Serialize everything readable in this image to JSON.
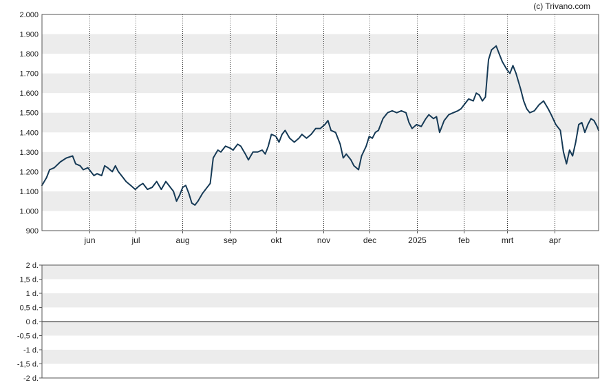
{
  "credit": "(c) Trivano.com",
  "colors": {
    "line": "#163a56",
    "band": "#ececec",
    "frame": "#555555",
    "grid": "#333333"
  },
  "chart_data": [
    {
      "type": "line",
      "ylim": [
        900,
        2000
      ],
      "yticks": [
        {
          "value": 900,
          "label": "900"
        },
        {
          "value": 1000,
          "label": "1.000"
        },
        {
          "value": 1100,
          "label": "1.100"
        },
        {
          "value": 1200,
          "label": "1.200"
        },
        {
          "value": 1300,
          "label": "1.300"
        },
        {
          "value": 1400,
          "label": "1.400"
        },
        {
          "value": 1500,
          "label": "1.500"
        },
        {
          "value": 1600,
          "label": "1.600"
        },
        {
          "value": 1700,
          "label": "1.700"
        },
        {
          "value": 1800,
          "label": "1.800"
        },
        {
          "value": 1900,
          "label": "1.900"
        },
        {
          "value": 2000,
          "label": "2.000"
        }
      ],
      "xlim": [
        "2024-05-01",
        "2025-04-30"
      ],
      "xticks": [
        {
          "date": "2024-06-01",
          "label": "jun"
        },
        {
          "date": "2024-07-01",
          "label": "jul"
        },
        {
          "date": "2024-08-01",
          "label": "aug"
        },
        {
          "date": "2024-09-01",
          "label": "sep"
        },
        {
          "date": "2024-10-01",
          "label": "okt"
        },
        {
          "date": "2024-11-01",
          "label": "nov"
        },
        {
          "date": "2024-12-01",
          "label": "dec"
        },
        {
          "date": "2025-01-01",
          "label": "2025"
        },
        {
          "date": "2025-02-01",
          "label": "feb"
        },
        {
          "date": "2025-03-01",
          "label": "mrt"
        },
        {
          "date": "2025-04-01",
          "label": "apr"
        }
      ],
      "grid": "vertical dotted lines at month ticks, alternating horizontal bands",
      "series": [
        {
          "points": [
            [
              "2024-05-01",
              1130
            ],
            [
              "2024-05-04",
              1170
            ],
            [
              "2024-05-06",
              1210
            ],
            [
              "2024-05-09",
              1220
            ],
            [
              "2024-05-13",
              1250
            ],
            [
              "2024-05-17",
              1270
            ],
            [
              "2024-05-21",
              1280
            ],
            [
              "2024-05-23",
              1240
            ],
            [
              "2024-05-26",
              1230
            ],
            [
              "2024-05-28",
              1210
            ],
            [
              "2024-05-31",
              1220
            ],
            [
              "2024-06-02",
              1200
            ],
            [
              "2024-06-04",
              1180
            ],
            [
              "2024-06-06",
              1190
            ],
            [
              "2024-06-09",
              1180
            ],
            [
              "2024-06-11",
              1230
            ],
            [
              "2024-06-13",
              1220
            ],
            [
              "2024-06-16",
              1200
            ],
            [
              "2024-06-18",
              1230
            ],
            [
              "2024-06-20",
              1200
            ],
            [
              "2024-06-23",
              1170
            ],
            [
              "2024-06-25",
              1150
            ],
            [
              "2024-06-28",
              1130
            ],
            [
              "2024-07-01",
              1110
            ],
            [
              "2024-07-04",
              1130
            ],
            [
              "2024-07-06",
              1140
            ],
            [
              "2024-07-09",
              1110
            ],
            [
              "2024-07-12",
              1120
            ],
            [
              "2024-07-15",
              1150
            ],
            [
              "2024-07-18",
              1110
            ],
            [
              "2024-07-21",
              1150
            ],
            [
              "2024-07-24",
              1120
            ],
            [
              "2024-07-26",
              1100
            ],
            [
              "2024-07-28",
              1050
            ],
            [
              "2024-07-30",
              1080
            ],
            [
              "2024-08-01",
              1120
            ],
            [
              "2024-08-03",
              1130
            ],
            [
              "2024-08-05",
              1090
            ],
            [
              "2024-08-07",
              1040
            ],
            [
              "2024-08-09",
              1030
            ],
            [
              "2024-08-11",
              1050
            ],
            [
              "2024-08-14",
              1090
            ],
            [
              "2024-08-17",
              1120
            ],
            [
              "2024-08-19",
              1140
            ],
            [
              "2024-08-21",
              1270
            ],
            [
              "2024-08-24",
              1310
            ],
            [
              "2024-08-26",
              1300
            ],
            [
              "2024-08-29",
              1330
            ],
            [
              "2024-09-01",
              1320
            ],
            [
              "2024-09-03",
              1310
            ],
            [
              "2024-09-06",
              1340
            ],
            [
              "2024-09-08",
              1330
            ],
            [
              "2024-09-11",
              1290
            ],
            [
              "2024-09-13",
              1260
            ],
            [
              "2024-09-16",
              1300
            ],
            [
              "2024-09-19",
              1300
            ],
            [
              "2024-09-22",
              1310
            ],
            [
              "2024-09-24",
              1290
            ],
            [
              "2024-09-26",
              1330
            ],
            [
              "2024-09-28",
              1390
            ],
            [
              "2024-10-01",
              1380
            ],
            [
              "2024-10-03",
              1350
            ],
            [
              "2024-10-05",
              1390
            ],
            [
              "2024-10-07",
              1410
            ],
            [
              "2024-10-10",
              1370
            ],
            [
              "2024-10-13",
              1350
            ],
            [
              "2024-10-16",
              1370
            ],
            [
              "2024-10-18",
              1390
            ],
            [
              "2024-10-21",
              1370
            ],
            [
              "2024-10-24",
              1390
            ],
            [
              "2024-10-27",
              1420
            ],
            [
              "2024-10-30",
              1420
            ],
            [
              "2024-11-02",
              1440
            ],
            [
              "2024-11-04",
              1460
            ],
            [
              "2024-11-06",
              1410
            ],
            [
              "2024-11-09",
              1400
            ],
            [
              "2024-11-12",
              1340
            ],
            [
              "2024-11-14",
              1270
            ],
            [
              "2024-11-16",
              1290
            ],
            [
              "2024-11-19",
              1260
            ],
            [
              "2024-11-21",
              1230
            ],
            [
              "2024-11-24",
              1210
            ],
            [
              "2024-11-26",
              1280
            ],
            [
              "2024-11-29",
              1330
            ],
            [
              "2024-12-01",
              1380
            ],
            [
              "2024-12-03",
              1370
            ],
            [
              "2024-12-05",
              1400
            ],
            [
              "2024-12-07",
              1410
            ],
            [
              "2024-12-10",
              1470
            ],
            [
              "2024-12-13",
              1500
            ],
            [
              "2024-12-16",
              1510
            ],
            [
              "2024-12-19",
              1500
            ],
            [
              "2024-12-22",
              1510
            ],
            [
              "2024-12-25",
              1500
            ],
            [
              "2024-12-27",
              1450
            ],
            [
              "2024-12-29",
              1420
            ],
            [
              "2025-01-01",
              1440
            ],
            [
              "2025-01-04",
              1430
            ],
            [
              "2025-01-07",
              1470
            ],
            [
              "2025-01-09",
              1490
            ],
            [
              "2025-01-12",
              1470
            ],
            [
              "2025-01-14",
              1480
            ],
            [
              "2025-01-16",
              1400
            ],
            [
              "2025-01-19",
              1460
            ],
            [
              "2025-01-22",
              1490
            ],
            [
              "2025-01-25",
              1500
            ],
            [
              "2025-01-28",
              1510
            ],
            [
              "2025-01-30",
              1520
            ],
            [
              "2025-02-02",
              1550
            ],
            [
              "2025-02-04",
              1570
            ],
            [
              "2025-02-07",
              1560
            ],
            [
              "2025-02-09",
              1600
            ],
            [
              "2025-02-11",
              1590
            ],
            [
              "2025-02-13",
              1560
            ],
            [
              "2025-02-15",
              1580
            ],
            [
              "2025-02-17",
              1770
            ],
            [
              "2025-02-19",
              1820
            ],
            [
              "2025-02-22",
              1840
            ],
            [
              "2025-02-24",
              1800
            ],
            [
              "2025-02-26",
              1760
            ],
            [
              "2025-03-01",
              1720
            ],
            [
              "2025-03-03",
              1700
            ],
            [
              "2025-03-05",
              1740
            ],
            [
              "2025-03-07",
              1700
            ],
            [
              "2025-03-10",
              1620
            ],
            [
              "2025-03-12",
              1560
            ],
            [
              "2025-03-14",
              1520
            ],
            [
              "2025-03-16",
              1500
            ],
            [
              "2025-03-19",
              1510
            ],
            [
              "2025-03-22",
              1540
            ],
            [
              "2025-03-25",
              1560
            ],
            [
              "2025-03-28",
              1520
            ],
            [
              "2025-03-30",
              1490
            ],
            [
              "2025-04-02",
              1440
            ],
            [
              "2025-04-05",
              1410
            ],
            [
              "2025-04-07",
              1300
            ],
            [
              "2025-04-09",
              1240
            ],
            [
              "2025-04-11",
              1310
            ],
            [
              "2025-04-13",
              1280
            ],
            [
              "2025-04-15",
              1350
            ],
            [
              "2025-04-17",
              1440
            ],
            [
              "2025-04-19",
              1450
            ],
            [
              "2025-04-21",
              1400
            ],
            [
              "2025-04-23",
              1440
            ],
            [
              "2025-04-25",
              1470
            ],
            [
              "2025-04-27",
              1460
            ],
            [
              "2025-04-29",
              1430
            ],
            [
              "2025-04-30",
              1410
            ]
          ]
        }
      ]
    },
    {
      "type": "line",
      "ylim": [
        -2,
        2
      ],
      "yticks": [
        {
          "value": 2,
          "label": "2 d."
        },
        {
          "value": 1.5,
          "label": "1,5 d."
        },
        {
          "value": 1,
          "label": "1 d."
        },
        {
          "value": 0.5,
          "label": "0,5 d."
        },
        {
          "value": 0,
          "label": "0 d."
        },
        {
          "value": -0.5,
          "label": "-0,5 d."
        },
        {
          "value": -1,
          "label": "-1 d."
        },
        {
          "value": -1.5,
          "label": "-1,5 d."
        },
        {
          "value": -2,
          "label": "-2 d."
        }
      ],
      "reference_line": 0,
      "series": []
    }
  ]
}
